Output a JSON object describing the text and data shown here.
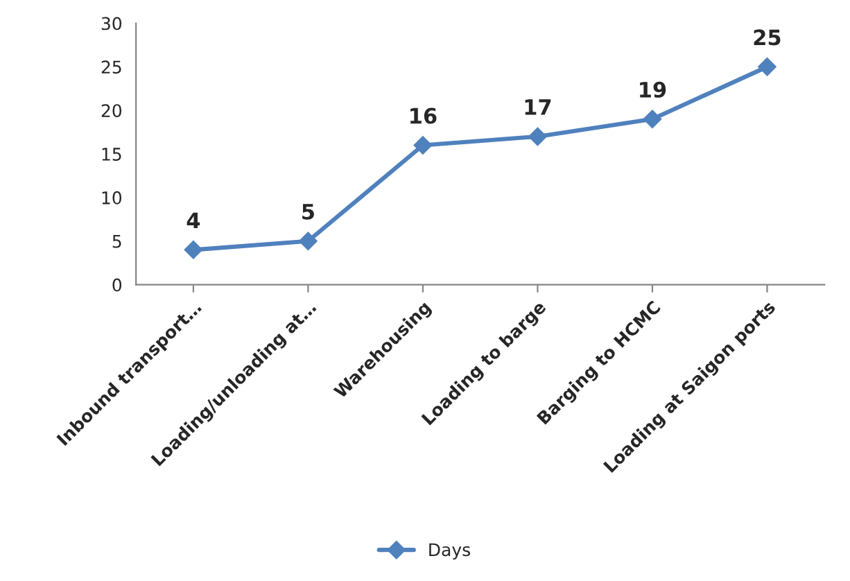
{
  "chart_data": {
    "type": "line",
    "categories": [
      "Inbound transport…",
      "Loading/unloading at…",
      "Warehousing",
      "Loading to barge",
      "Barging to HCMC",
      "Loading at Saigon ports"
    ],
    "series": [
      {
        "name": "Days",
        "color": "#4f81bd",
        "values": [
          4,
          5,
          16,
          17,
          19,
          25
        ]
      }
    ],
    "ylim": [
      0,
      30
    ],
    "yticks": [
      0,
      5,
      10,
      15,
      20,
      25,
      30
    ],
    "data_labels": true,
    "marker": "diamond",
    "line_style": "solid",
    "legend": "bottom",
    "grid": false
  }
}
